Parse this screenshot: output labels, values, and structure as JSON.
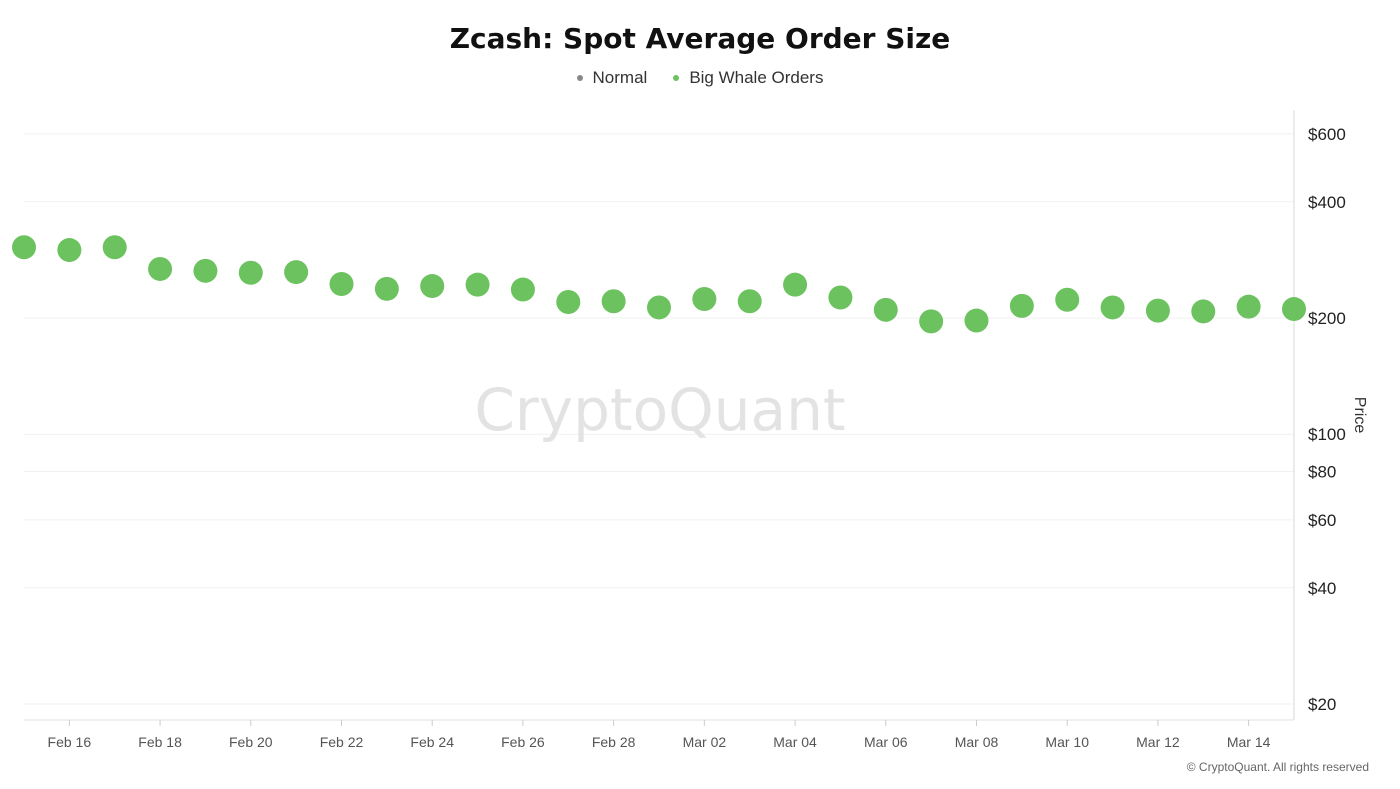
{
  "header": {
    "title": "Zcash: Spot Average Order Size"
  },
  "legend": [
    {
      "label": "Normal",
      "color": "#888888"
    },
    {
      "label": "Big Whale Orders",
      "color": "#6cc25f"
    }
  ],
  "watermark": "CryptoQuant",
  "copyright": "© CryptoQuant. All rights reserved",
  "chart_data": {
    "type": "scatter",
    "title": "Zcash: Spot Average Order Size",
    "ylabel": "Price",
    "xlabel": "",
    "y_scale": "log",
    "ylim": [
      18,
      680
    ],
    "y_ticks": [
      {
        "value": 600,
        "label": "$600"
      },
      {
        "value": 400,
        "label": "$400"
      },
      {
        "value": 200,
        "label": "$200"
      },
      {
        "value": 100,
        "label": "$100"
      },
      {
        "value": 80,
        "label": "$80"
      },
      {
        "value": 60,
        "label": "$60"
      },
      {
        "value": 40,
        "label": "$40"
      },
      {
        "value": 20,
        "label": "$20"
      }
    ],
    "x_tick_labels": [
      "Feb 16",
      "Feb 18",
      "Feb 20",
      "Feb 22",
      "Feb 24",
      "Feb 26",
      "Feb 28",
      "Mar 02",
      "Mar 04",
      "Mar 06",
      "Mar 08",
      "Mar 10",
      "Mar 12",
      "Mar 14"
    ],
    "grid": true,
    "legend_position": "top-center",
    "series": [
      {
        "name": "Big Whale Orders",
        "color": "#6cc25f",
        "x": [
          "Feb 15",
          "Feb 16",
          "Feb 17",
          "Feb 18",
          "Feb 19",
          "Feb 20",
          "Feb 21",
          "Feb 22",
          "Feb 23",
          "Feb 24",
          "Feb 25",
          "Feb 26",
          "Feb 27",
          "Feb 28",
          "Mar 01",
          "Mar 02",
          "Mar 03",
          "Mar 04",
          "Mar 05",
          "Mar 06",
          "Mar 07",
          "Mar 08",
          "Mar 09",
          "Mar 10",
          "Mar 11",
          "Mar 12",
          "Mar 13",
          "Mar 14",
          "Mar 15"
        ],
        "y": [
          305,
          300,
          305,
          268,
          265,
          262,
          263,
          245,
          238,
          242,
          244,
          237,
          220,
          221,
          213,
          224,
          221,
          244,
          226,
          210,
          196,
          197,
          215,
          223,
          213,
          209,
          208,
          214,
          211
        ]
      },
      {
        "name": "Normal",
        "color": "#888888",
        "x": [],
        "y": []
      }
    ]
  }
}
